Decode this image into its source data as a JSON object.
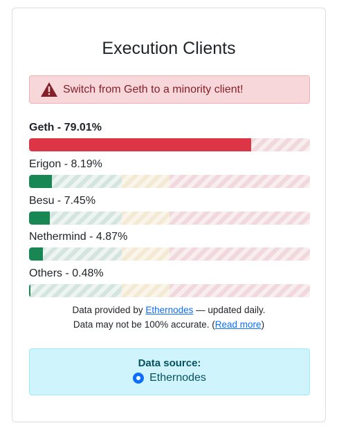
{
  "title": "Execution Clients",
  "alert": {
    "text": "Switch from Geth to a minority client!",
    "icon": "warning-triangle-icon"
  },
  "clients": [
    {
      "label": "Geth - 79.01%",
      "percent": 79.01,
      "bold": true,
      "color": "#dc3545"
    },
    {
      "label": "Erigon - 8.19%",
      "percent": 8.19,
      "bold": false,
      "color": "#198754"
    },
    {
      "label": "Besu - 7.45%",
      "percent": 7.45,
      "bold": false,
      "color": "#198754"
    },
    {
      "label": "Nethermind - 4.87%",
      "percent": 4.87,
      "bold": false,
      "color": "#198754"
    },
    {
      "label": "Others - 0.48%",
      "percent": 0.48,
      "bold": false,
      "color": "#198754"
    }
  ],
  "note": {
    "line1_prefix": "Data provided by ",
    "line1_link": "Ethernodes",
    "line1_suffix": " — updated daily.",
    "line2_prefix": "Data may not be 100% accurate. (",
    "line2_link": "Read more",
    "line2_suffix": ")"
  },
  "data_source": {
    "title": "Data source:",
    "option": "Ethernodes",
    "selected": true
  },
  "colors": {
    "danger": "#dc3545",
    "success": "#198754",
    "link": "#0d6efd",
    "info_bg": "#cff4fc",
    "alert_bg": "#f8d7da"
  }
}
